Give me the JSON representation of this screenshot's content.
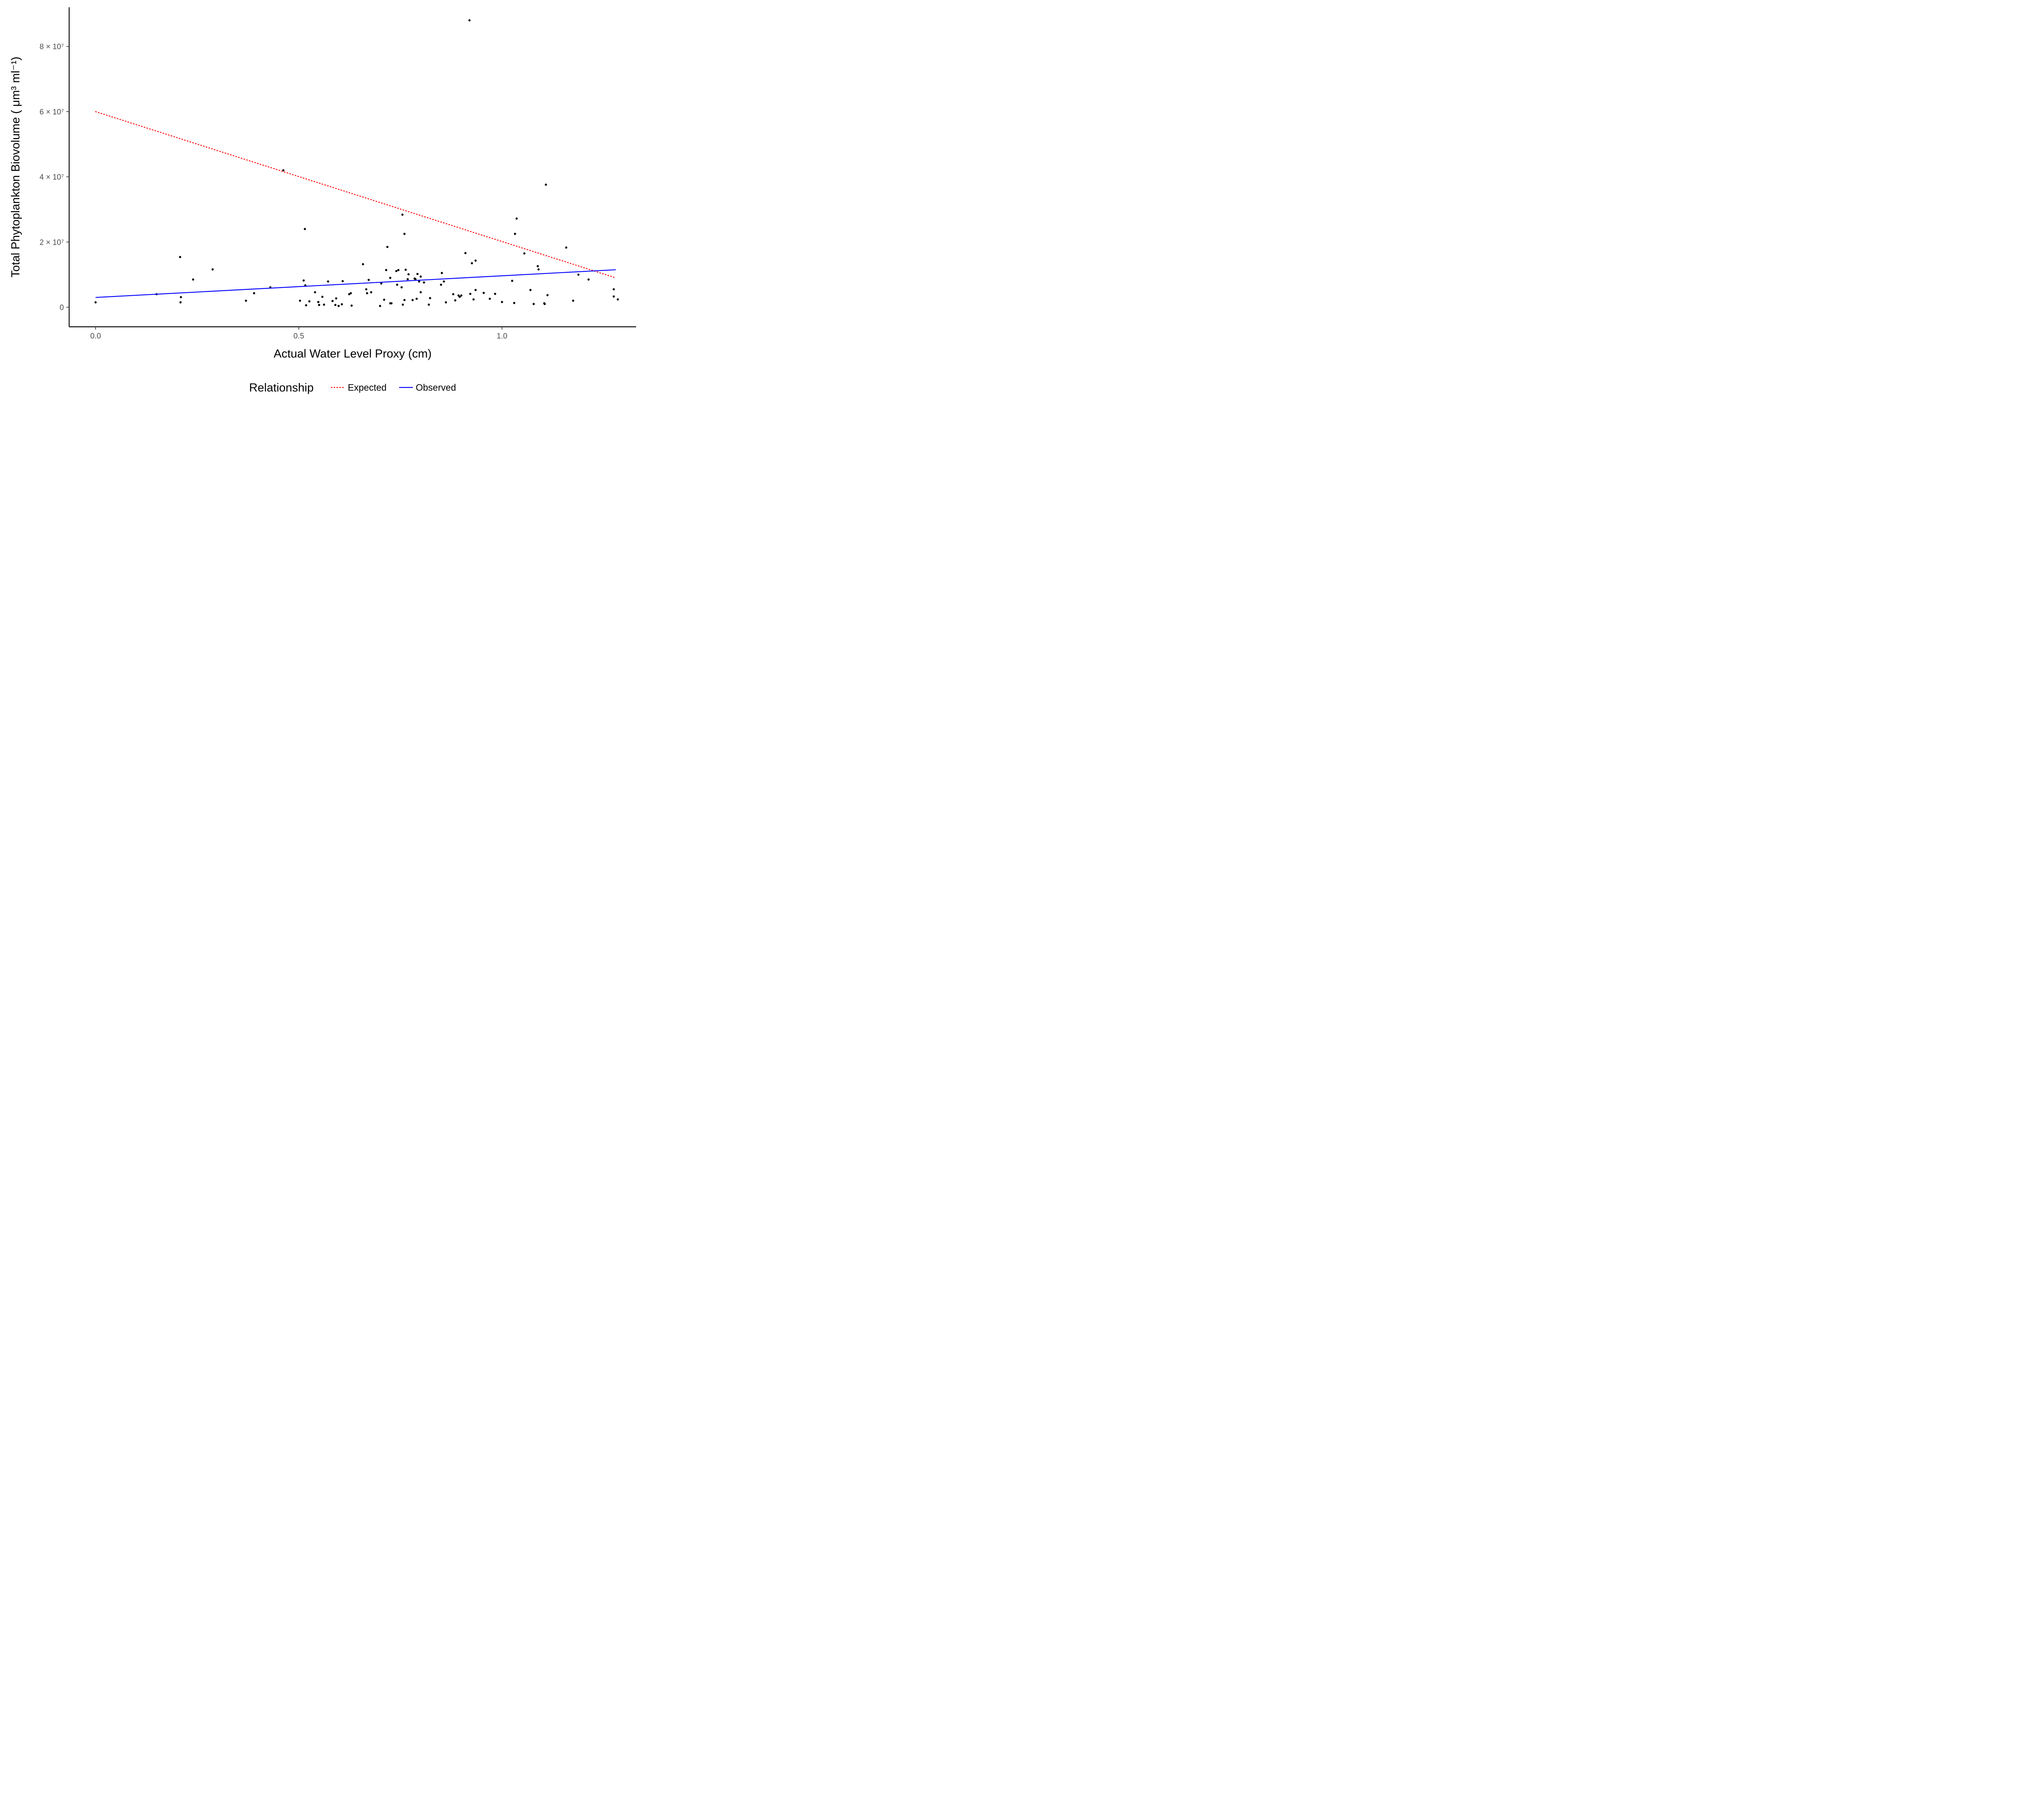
{
  "chart_data": {
    "type": "scatter",
    "xlabel": "Actual Water Level Proxy (cm)",
    "ylabel": "Total Phytoplankton Biovolume ( μm³ ml⁻¹)",
    "xlim": [
      -0.065,
      1.33
    ],
    "ylim": [
      -6000000,
      92000000
    ],
    "x_ticks": [
      0.0,
      0.5,
      1.0
    ],
    "x_tick_labels": [
      "0.0",
      "0.5",
      "1.0"
    ],
    "y_ticks": [
      0,
      20000000,
      40000000,
      60000000,
      80000000
    ],
    "y_tick_labels": [
      "0",
      "2 × 10⁷",
      "4 × 10⁷",
      "6 × 10⁷",
      "8 × 10⁷"
    ],
    "grid": false,
    "legend": {
      "title": "Relationship",
      "position": "bottom",
      "entries": [
        "Expected",
        "Observed"
      ]
    },
    "series": [
      {
        "name": "Expected",
        "kind": "line",
        "style": "dotted",
        "color": "#ff0000",
        "x": [
          0.0,
          1.28
        ],
        "y": [
          60000000,
          9000000
        ]
      },
      {
        "name": "Observed",
        "kind": "line",
        "style": "solid",
        "color": "#0000ff",
        "x": [
          0.0,
          1.28
        ],
        "y": [
          3000000,
          11500000
        ]
      }
    ],
    "points": {
      "color": "#000000",
      "x": [
        0.0,
        0.15,
        0.208,
        0.209,
        0.21,
        0.24,
        0.288,
        0.37,
        0.39,
        0.43,
        0.462,
        0.503,
        0.512,
        0.515,
        0.516,
        0.518,
        0.526,
        0.54,
        0.548,
        0.55,
        0.558,
        0.562,
        0.572,
        0.583,
        0.59,
        0.592,
        0.598,
        0.606,
        0.608,
        0.624,
        0.628,
        0.63,
        0.658,
        0.666,
        0.668,
        0.672,
        0.678,
        0.7,
        0.703,
        0.71,
        0.715,
        0.718,
        0.725,
        0.725,
        0.728,
        0.74,
        0.742,
        0.745,
        0.753,
        0.755,
        0.756,
        0.76,
        0.76,
        0.763,
        0.768,
        0.77,
        0.78,
        0.785,
        0.787,
        0.79,
        0.792,
        0.796,
        0.8,
        0.8,
        0.808,
        0.82,
        0.823,
        0.85,
        0.852,
        0.857,
        0.862,
        0.88,
        0.885,
        0.893,
        0.896,
        0.91,
        0.9,
        0.926,
        0.92,
        0.922,
        0.93,
        0.935,
        0.935,
        0.955,
        0.97,
        0.983,
        1.0,
        1.025,
        1.03,
        1.032,
        1.036,
        1.055,
        1.07,
        1.078,
        1.088,
        1.09,
        1.104,
        1.105,
        1.108,
        1.112,
        1.158,
        1.175,
        1.188,
        1.213,
        1.275,
        1.275,
        1.285
      ],
      "y": [
        1500000,
        4000000,
        15400000,
        1500000,
        3100000,
        8500000,
        11600000,
        2000000,
        4300000,
        6100000,
        42000000,
        2000000,
        8200000,
        24000000,
        6700000,
        600000,
        1800000,
        4600000,
        1600000,
        700000,
        3200000,
        800000,
        7900000,
        1900000,
        700000,
        2700000,
        400000,
        900000,
        8000000,
        4000000,
        4300000,
        500000,
        13200000,
        5500000,
        4300000,
        8400000,
        4600000,
        400000,
        7300000,
        2300000,
        11400000,
        18500000,
        9000000,
        1200000,
        1200000,
        11100000,
        6900000,
        11400000,
        6100000,
        28400000,
        800000,
        22500000,
        2200000,
        11500000,
        8600000,
        10100000,
        2200000,
        8800000,
        8600000,
        2600000,
        10200000,
        7900000,
        4600000,
        9400000,
        7600000,
        800000,
        2800000,
        6900000,
        10500000,
        7900000,
        1500000,
        4000000,
        2100000,
        3600000,
        3200000,
        16600000,
        3600000,
        13500000,
        88000000,
        4100000,
        2400000,
        5300000,
        14300000,
        4400000,
        2600000,
        4100000,
        1600000,
        8100000,
        1300000,
        22500000,
        27200000,
        16500000,
        5300000,
        1000000,
        12600000,
        11600000,
        1200000,
        1000000,
        37600000,
        3700000,
        18300000,
        2000000,
        10000000,
        8500000,
        5500000,
        3300000,
        2400000
      ]
    }
  }
}
